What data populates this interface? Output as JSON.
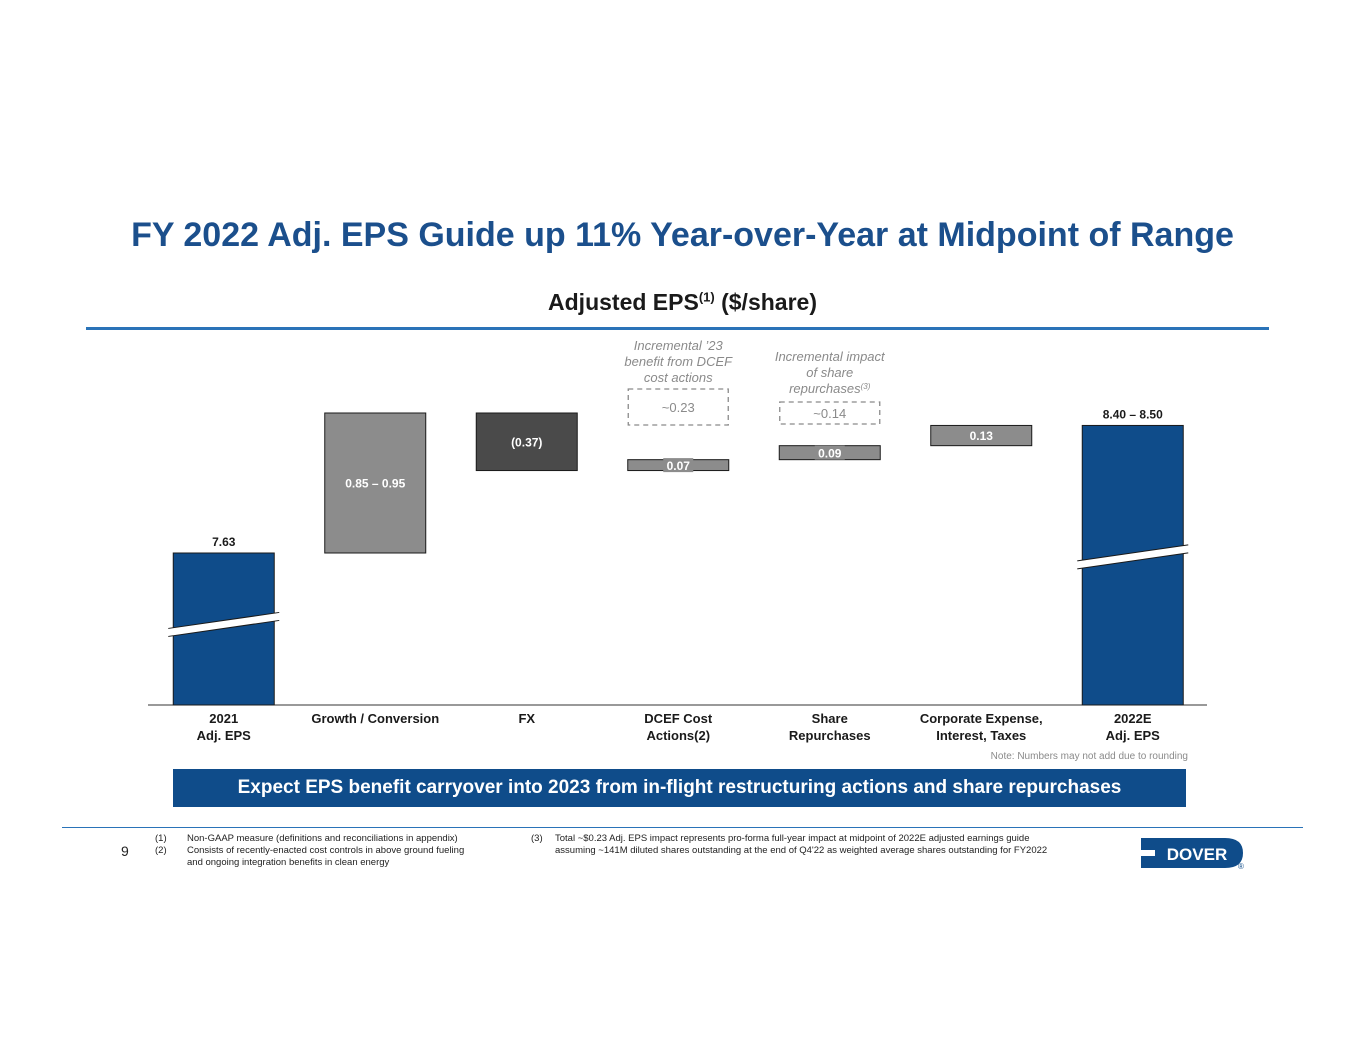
{
  "title": "FY 2022 Adj. EPS Guide up 11% Year-over-Year at Midpoint of Range",
  "chart_title": "Adjusted EPS",
  "chart_title_sup": "(1)",
  "chart_title_unit": "($/share)",
  "note": "Note: Numbers may not add due to rounding",
  "banner": "Expect EPS benefit carryover into 2023 from in-flight restructuring actions and share repurchases",
  "page_number": "9",
  "footnotes": {
    "f1_num": "(1)",
    "f1_text": "Non-GAAP measure (definitions and reconciliations in appendix)",
    "f2_num": "(2)",
    "f2_text_a": "Consists of recently-enacted cost controls in above ground fueling",
    "f2_text_b": "and ongoing integration benefits in clean energy",
    "f3_num": "(3)",
    "f3_text_a": "Total ~$0.23 Adj. EPS impact represents pro-forma full-year impact at midpoint of 2022E adjusted earnings guide",
    "f3_text_b": "assuming ~141M diluted shares outstanding at the end of Q4'22 as weighted average shares outstanding for FY2022"
  },
  "logo_text": "DOVER",
  "logo_mark": "®",
  "colors": {
    "title_blue": "#1b4f8c",
    "bar_blue": "#0f4c8a",
    "bar_gray": "#8c8c8c",
    "bar_dark": "#4a4a4a",
    "annotation_gray": "#8a8a8a"
  },
  "chart_data": {
    "type": "waterfall",
    "categories": [
      "2021\nAdj. EPS",
      "Growth / Conversion",
      "FX",
      "DCEF Cost\nActions(2)",
      "Share\nRepurchases",
      "Corporate Expense,\nInterest, Taxes",
      "2022E\nAdj. EPS"
    ],
    "bars": [
      {
        "kind": "total",
        "start": 0,
        "end": 7.63,
        "label": "7.63",
        "color": "blue",
        "broken_axis": true
      },
      {
        "kind": "delta",
        "start": 7.63,
        "end": 8.53,
        "label": "0.85 – 0.95",
        "color": "gray"
      },
      {
        "kind": "delta",
        "start": 8.53,
        "end": 8.16,
        "label": "(0.37)",
        "color": "dark"
      },
      {
        "kind": "delta",
        "start": 8.16,
        "end": 8.23,
        "label": "0.07",
        "color": "gray"
      },
      {
        "kind": "delta",
        "start": 8.23,
        "end": 8.32,
        "label": "0.09",
        "color": "gray"
      },
      {
        "kind": "delta",
        "start": 8.32,
        "end": 8.45,
        "label": "0.13",
        "color": "gray"
      },
      {
        "kind": "total",
        "start": 0,
        "end": 8.45,
        "label": "8.40 – 8.50",
        "color": "blue",
        "broken_axis": true
      }
    ],
    "annotations": [
      {
        "category_index": 3,
        "lines": [
          "Incremental ’23",
          "benefit from DCEF",
          "cost actions"
        ],
        "value": "~0.23"
      },
      {
        "category_index": 4,
        "lines": [
          "Incremental impact",
          "of share",
          "repurchases"
        ],
        "sup": "(3)",
        "value": "~0.14"
      }
    ]
  }
}
